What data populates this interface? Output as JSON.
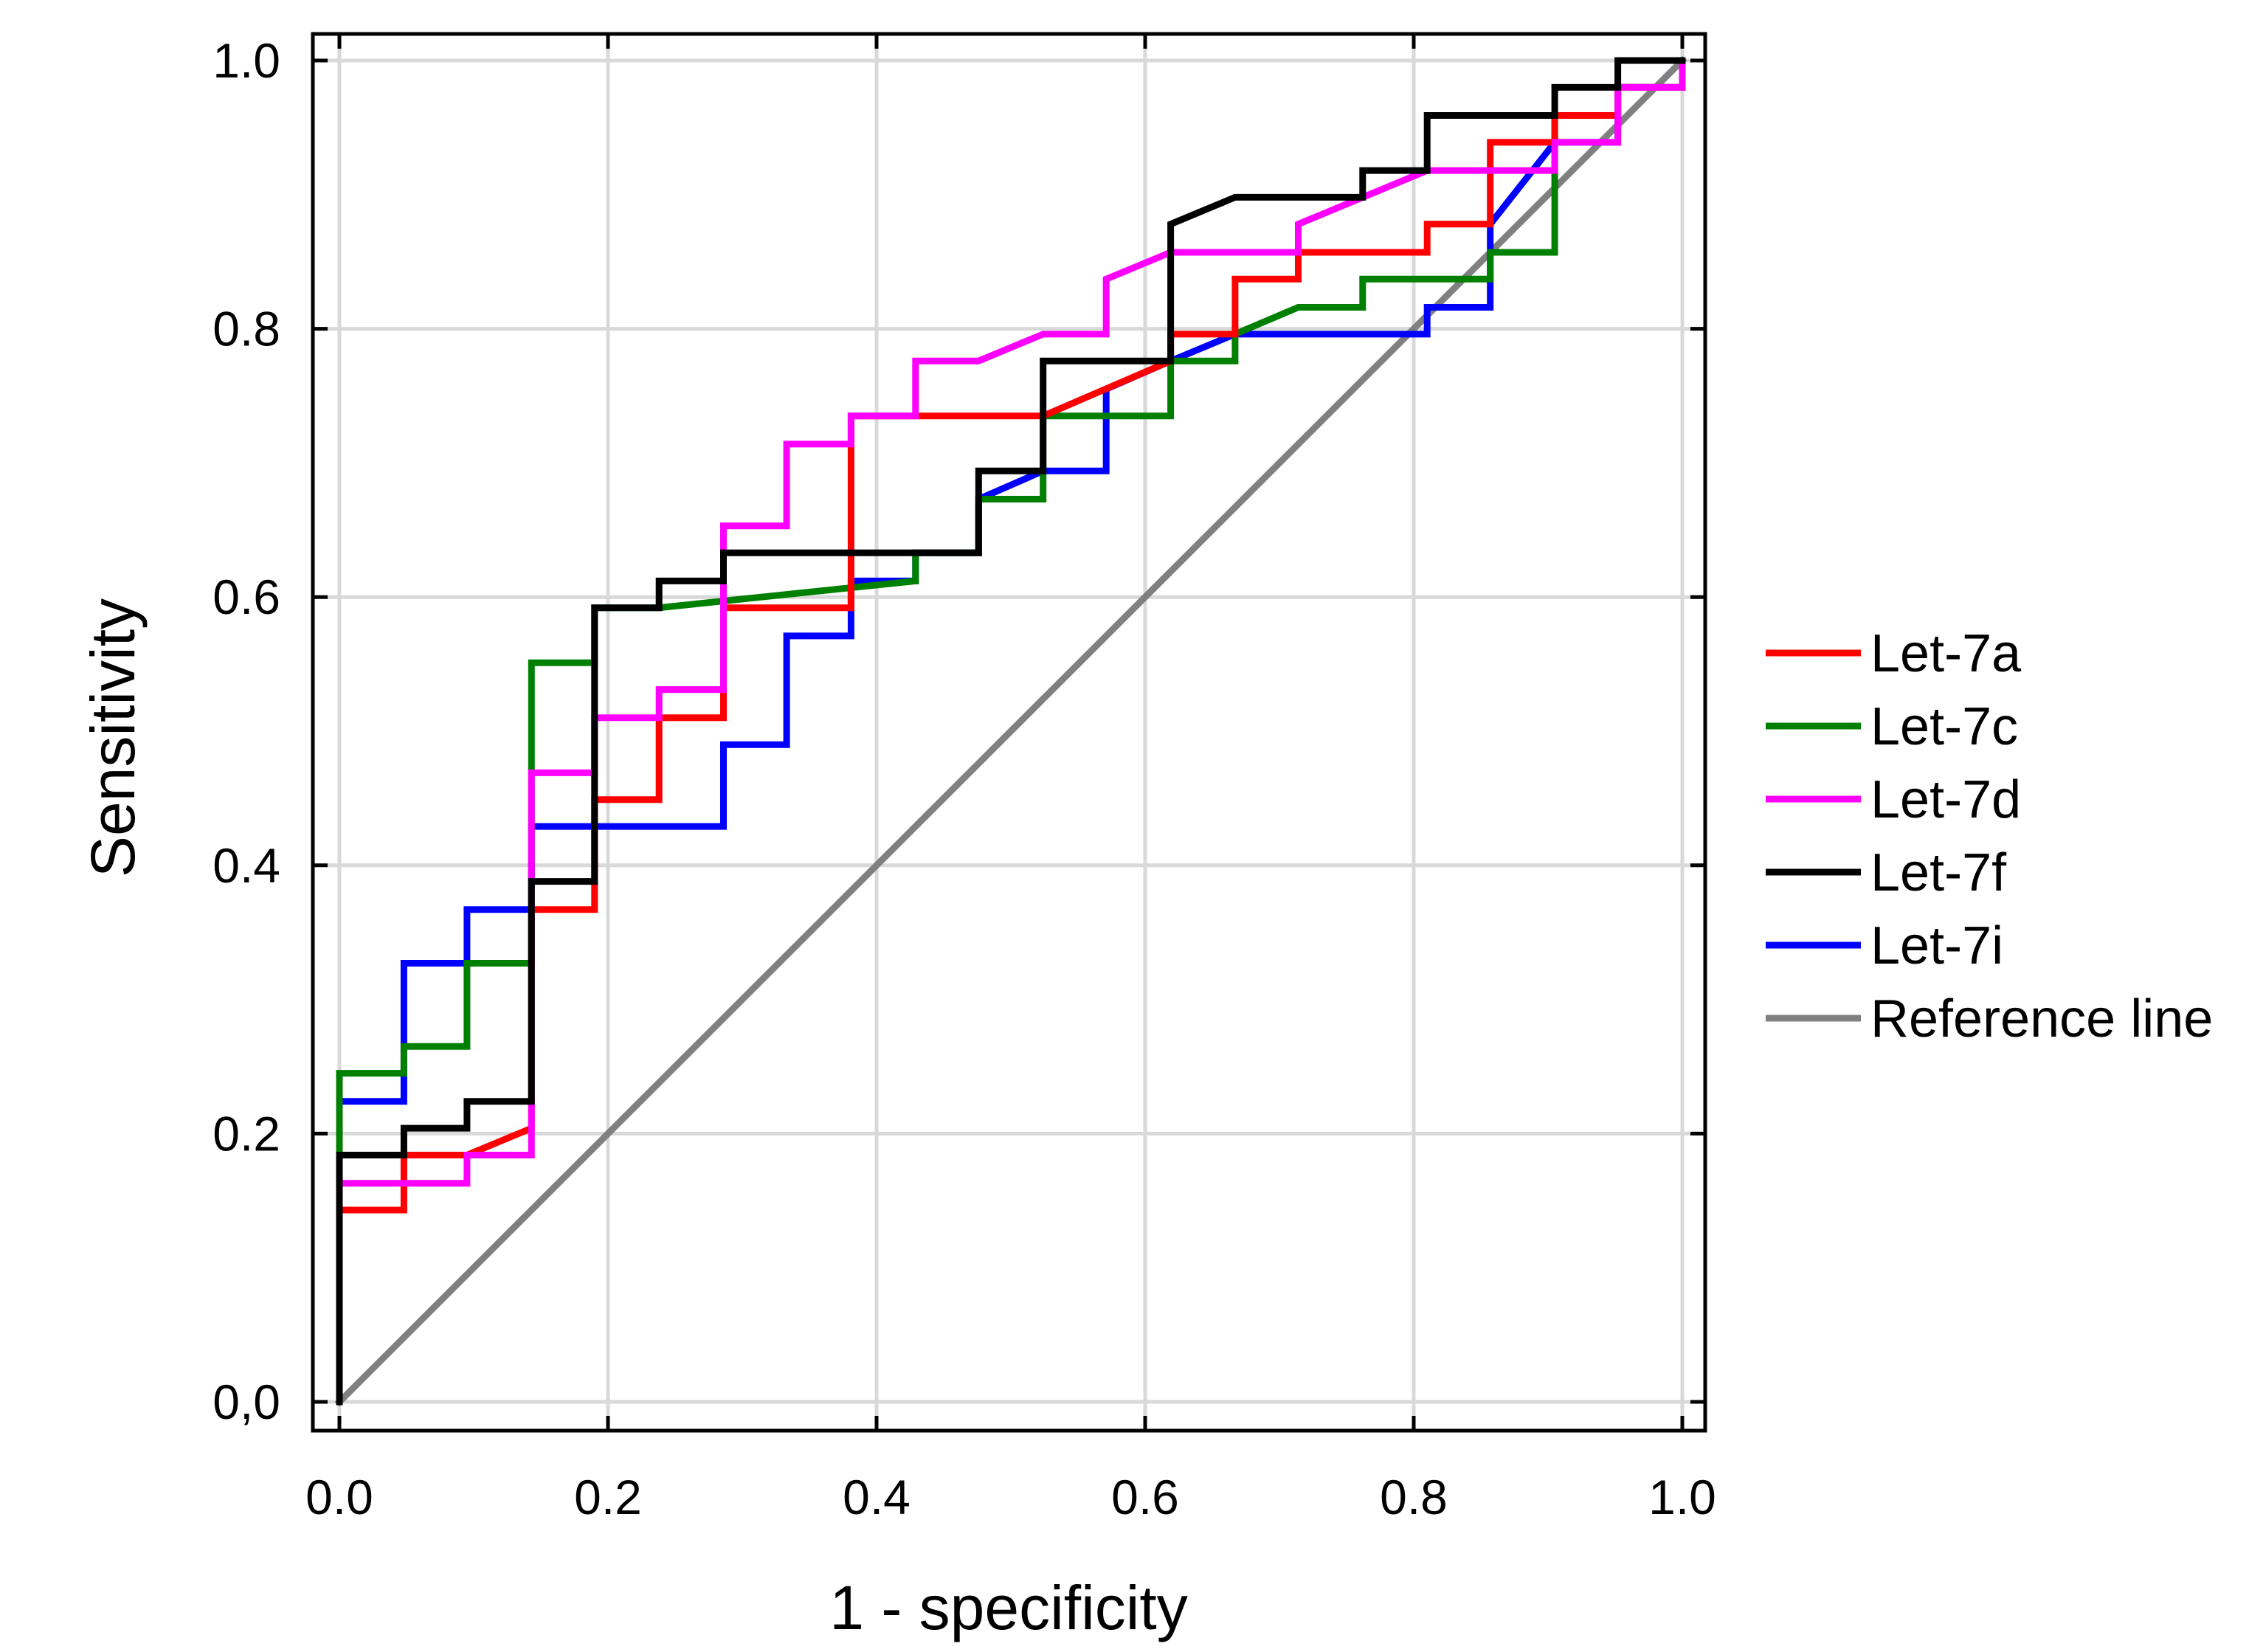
{
  "chart_data": {
    "type": "line",
    "subtype": "roc-step",
    "title": "",
    "xlabel": "1 - specificity",
    "ylabel": "Sensitivity",
    "xlim": [
      0,
      1
    ],
    "ylim": [
      0,
      1
    ],
    "grid": true,
    "legend_position": "right",
    "x_ticks": [
      {
        "value": 0.0,
        "label": "0.0"
      },
      {
        "value": 0.2,
        "label": "0.2"
      },
      {
        "value": 0.4,
        "label": "0.4"
      },
      {
        "value": 0.6,
        "label": "0.6"
      },
      {
        "value": 0.8,
        "label": "0.8"
      },
      {
        "value": 1.0,
        "label": "1.0"
      }
    ],
    "y_ticks": [
      {
        "value": 0.0,
        "label": "0,0"
      },
      {
        "value": 0.2,
        "label": "0.2"
      },
      {
        "value": 0.4,
        "label": "0.4"
      },
      {
        "value": 0.6,
        "label": "0.6"
      },
      {
        "value": 0.8,
        "label": "0.8"
      },
      {
        "value": 1.0,
        "label": "1.0"
      }
    ],
    "series": [
      {
        "name": "Let-7a",
        "color": "#ff0000",
        "points": [
          [
            0,
            0
          ],
          [
            0,
            0.143
          ],
          [
            0.048,
            0.143
          ],
          [
            0.048,
            0.184
          ],
          [
            0.095,
            0.184
          ],
          [
            0.143,
            0.204
          ],
          [
            0.143,
            0.367
          ],
          [
            0.19,
            0.367
          ],
          [
            0.19,
            0.449
          ],
          [
            0.238,
            0.449
          ],
          [
            0.238,
            0.51
          ],
          [
            0.286,
            0.51
          ],
          [
            0.286,
            0.592
          ],
          [
            0.381,
            0.592
          ],
          [
            0.381,
            0.735
          ],
          [
            0.524,
            0.735
          ],
          [
            0.524,
            0.735
          ],
          [
            0.619,
            0.776
          ],
          [
            0.619,
            0.796
          ],
          [
            0.667,
            0.796
          ],
          [
            0.667,
            0.837
          ],
          [
            0.714,
            0.837
          ],
          [
            0.714,
            0.857
          ],
          [
            0.81,
            0.857
          ],
          [
            0.81,
            0.878
          ],
          [
            0.857,
            0.878
          ],
          [
            0.857,
            0.939
          ],
          [
            0.905,
            0.939
          ],
          [
            0.905,
            0.959
          ],
          [
            0.952,
            0.959
          ],
          [
            0.952,
            0.98
          ],
          [
            1,
            0.98
          ],
          [
            1,
            1
          ]
        ]
      },
      {
        "name": "Let-7c",
        "color": "#008000",
        "points": [
          [
            0,
            0
          ],
          [
            0,
            0.245
          ],
          [
            0.048,
            0.245
          ],
          [
            0.048,
            0.265
          ],
          [
            0.095,
            0.265
          ],
          [
            0.095,
            0.327
          ],
          [
            0.143,
            0.327
          ],
          [
            0.143,
            0.551
          ],
          [
            0.19,
            0.551
          ],
          [
            0.19,
            0.592
          ],
          [
            0.238,
            0.592
          ],
          [
            0.238,
            0.592
          ],
          [
            0.429,
            0.612
          ],
          [
            0.429,
            0.633
          ],
          [
            0.476,
            0.633
          ],
          [
            0.476,
            0.673
          ],
          [
            0.524,
            0.673
          ],
          [
            0.524,
            0.735
          ],
          [
            0.619,
            0.735
          ],
          [
            0.619,
            0.776
          ],
          [
            0.667,
            0.776
          ],
          [
            0.667,
            0.796
          ],
          [
            0.714,
            0.816
          ],
          [
            0.762,
            0.816
          ],
          [
            0.762,
            0.837
          ],
          [
            0.857,
            0.837
          ],
          [
            0.857,
            0.857
          ],
          [
            0.905,
            0.857
          ],
          [
            0.905,
            0.959
          ],
          [
            0.952,
            0.959
          ],
          [
            0.952,
            0.98
          ],
          [
            1,
            0.98
          ],
          [
            1,
            1
          ]
        ]
      },
      {
        "name": "Let-7d",
        "color": "#ff00ff",
        "points": [
          [
            0,
            0
          ],
          [
            0,
            0.163
          ],
          [
            0.095,
            0.163
          ],
          [
            0.095,
            0.184
          ],
          [
            0.143,
            0.184
          ],
          [
            0.143,
            0.469
          ],
          [
            0.19,
            0.469
          ],
          [
            0.19,
            0.51
          ],
          [
            0.238,
            0.51
          ],
          [
            0.238,
            0.531
          ],
          [
            0.286,
            0.531
          ],
          [
            0.286,
            0.653
          ],
          [
            0.333,
            0.653
          ],
          [
            0.333,
            0.714
          ],
          [
            0.381,
            0.714
          ],
          [
            0.381,
            0.735
          ],
          [
            0.429,
            0.735
          ],
          [
            0.429,
            0.776
          ],
          [
            0.476,
            0.776
          ],
          [
            0.524,
            0.796
          ],
          [
            0.571,
            0.796
          ],
          [
            0.571,
            0.837
          ],
          [
            0.619,
            0.857
          ],
          [
            0.714,
            0.857
          ],
          [
            0.714,
            0.878
          ],
          [
            0.81,
            0.918
          ],
          [
            0.905,
            0.918
          ],
          [
            0.905,
            0.939
          ],
          [
            0.952,
            0.939
          ],
          [
            0.952,
            0.98
          ],
          [
            1,
            0.98
          ],
          [
            1,
            1
          ]
        ]
      },
      {
        "name": "Let-7f",
        "color": "#000000",
        "points": [
          [
            0,
            0
          ],
          [
            0,
            0.184
          ],
          [
            0.048,
            0.184
          ],
          [
            0.048,
            0.204
          ],
          [
            0.095,
            0.204
          ],
          [
            0.095,
            0.224
          ],
          [
            0.143,
            0.224
          ],
          [
            0.143,
            0.388
          ],
          [
            0.19,
            0.388
          ],
          [
            0.19,
            0.592
          ],
          [
            0.238,
            0.592
          ],
          [
            0.238,
            0.612
          ],
          [
            0.286,
            0.612
          ],
          [
            0.286,
            0.633
          ],
          [
            0.476,
            0.633
          ],
          [
            0.476,
            0.694
          ],
          [
            0.524,
            0.694
          ],
          [
            0.524,
            0.776
          ],
          [
            0.619,
            0.776
          ],
          [
            0.619,
            0.878
          ],
          [
            0.667,
            0.898
          ],
          [
            0.762,
            0.898
          ],
          [
            0.762,
            0.918
          ],
          [
            0.81,
            0.918
          ],
          [
            0.81,
            0.959
          ],
          [
            0.905,
            0.959
          ],
          [
            0.905,
            0.98
          ],
          [
            0.952,
            0.98
          ],
          [
            0.952,
            1
          ],
          [
            1,
            1
          ]
        ]
      },
      {
        "name": "Let-7i",
        "color": "#0000ff",
        "points": [
          [
            0,
            0
          ],
          [
            0,
            0.224
          ],
          [
            0.048,
            0.224
          ],
          [
            0.048,
            0.327
          ],
          [
            0.095,
            0.327
          ],
          [
            0.095,
            0.367
          ],
          [
            0.143,
            0.367
          ],
          [
            0.143,
            0.429
          ],
          [
            0.286,
            0.429
          ],
          [
            0.286,
            0.49
          ],
          [
            0.333,
            0.49
          ],
          [
            0.333,
            0.571
          ],
          [
            0.381,
            0.571
          ],
          [
            0.381,
            0.612
          ],
          [
            0.429,
            0.612
          ],
          [
            0.429,
            0.633
          ],
          [
            0.476,
            0.633
          ],
          [
            0.476,
            0.673
          ],
          [
            0.524,
            0.694
          ],
          [
            0.571,
            0.694
          ],
          [
            0.571,
            0.755
          ],
          [
            0.619,
            0.776
          ],
          [
            0.619,
            0.776
          ],
          [
            0.667,
            0.796
          ],
          [
            0.81,
            0.796
          ],
          [
            0.81,
            0.816
          ],
          [
            0.857,
            0.816
          ],
          [
            0.857,
            0.878
          ],
          [
            0.905,
            0.939
          ],
          [
            0.952,
            0.939
          ],
          [
            0.952,
            0.98
          ],
          [
            1,
            0.98
          ],
          [
            1,
            1
          ]
        ]
      },
      {
        "name": "Reference line",
        "color": "#808080",
        "points": [
          [
            0,
            0
          ],
          [
            1,
            1
          ]
        ]
      }
    ]
  }
}
